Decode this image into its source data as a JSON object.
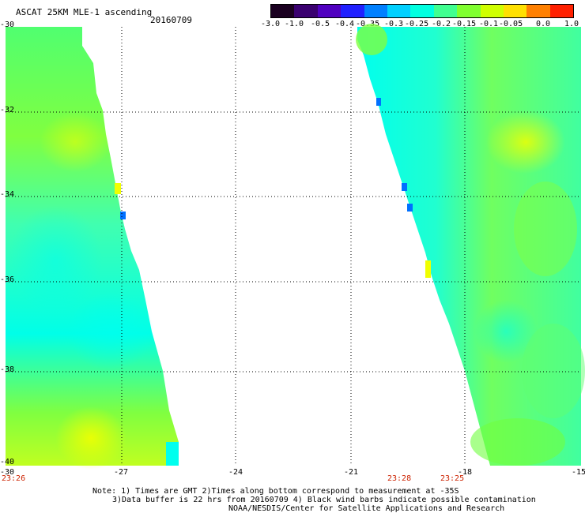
{
  "header": {
    "title": "ASCAT 25KM MLE-1 ascending",
    "date": "20160709"
  },
  "colorbar": {
    "colors": [
      "#1a0020",
      "#3a0070",
      "#5000c0",
      "#2020ff",
      "#0080ff",
      "#00d0ff",
      "#00ffe0",
      "#40ff90",
      "#80ff30",
      "#d0ff00",
      "#ffe000",
      "#ff8000",
      "#ff2000"
    ],
    "labels": [
      "-3.0",
      "-1.0",
      "-0.5",
      "-0.4",
      "-0.35",
      "-0.3",
      "-0.25",
      "-0.2",
      "-0.15",
      "-0.1",
      "-0.05",
      "0.0",
      "1.0"
    ]
  },
  "map": {
    "lon_labels": [
      "-30",
      "-27",
      "-24",
      "-21",
      "-18",
      "-15"
    ],
    "lat_labels": [
      "-30",
      "-32",
      "-34",
      "-36",
      "-38",
      "-40"
    ],
    "time_labels": [
      "23:26",
      "23:28",
      "23:25"
    ],
    "swath_colors": {
      "cyan": "#00ffee",
      "aqua_green": "#40ffa0",
      "green": "#70ff40",
      "yellow": "#f0ff00",
      "blue": "#0070ff"
    }
  },
  "footer": {
    "note1": "Note: 1) Times are GMT 2)Times along bottom correspond to measurement at -35S",
    "note2": "3)Data buffer is 22 hrs from 20160709 4) Black wind barbs indicate possible contamination",
    "credit": "NOAA/NESDIS/Center for Satellite Applications and Research"
  }
}
